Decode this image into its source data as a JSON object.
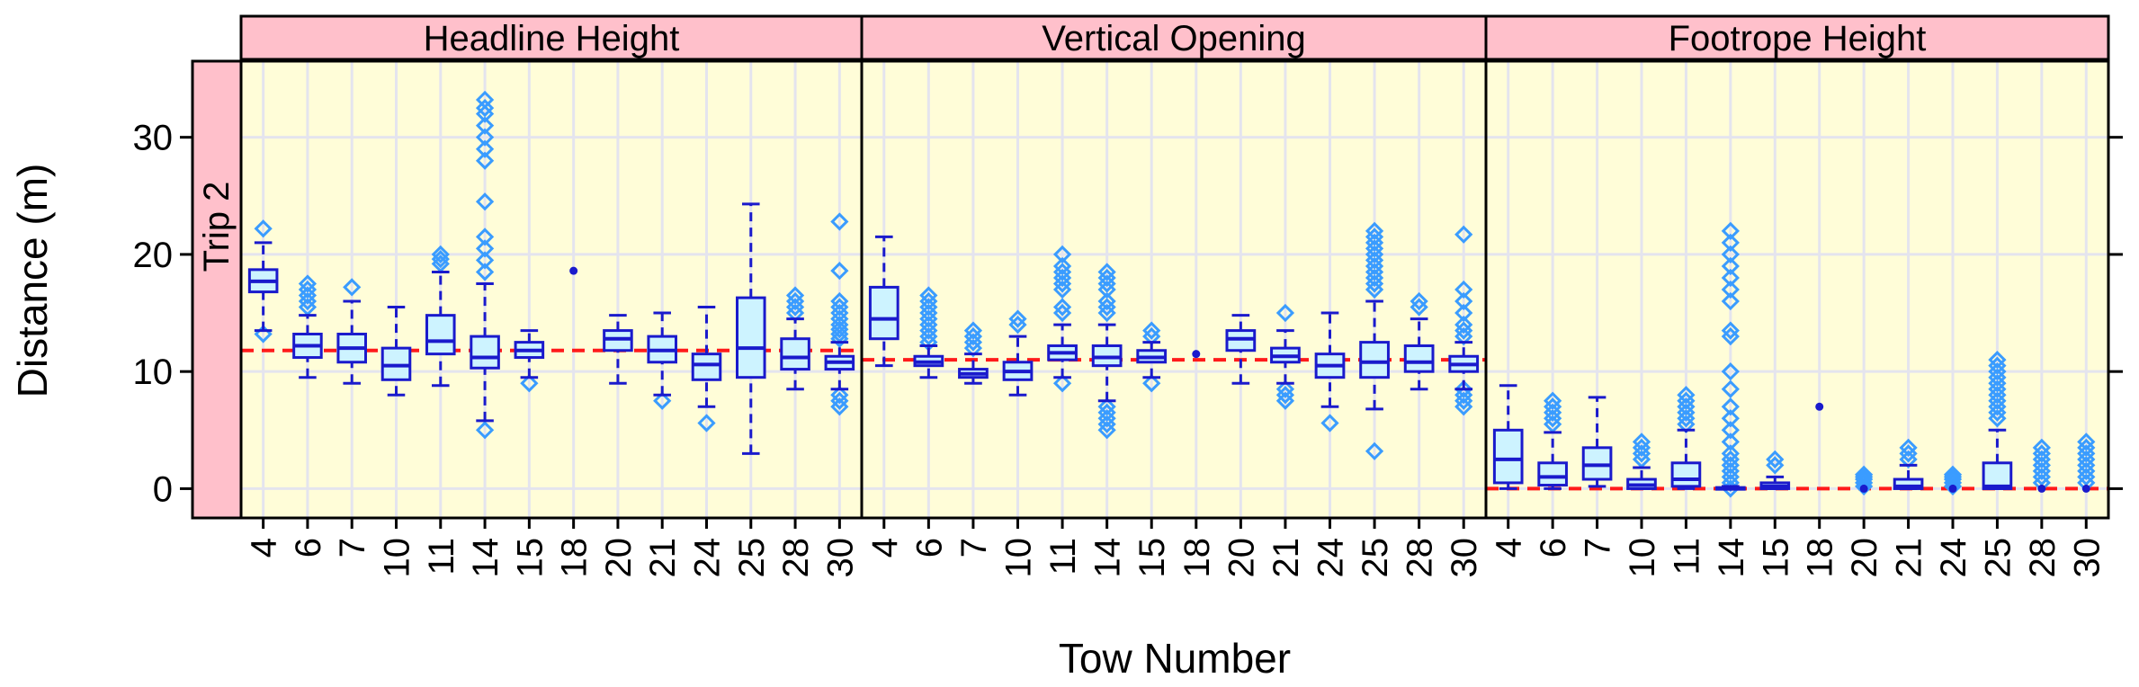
{
  "chart_data": {
    "type": "box",
    "ylabel": "Distance (m)",
    "xlabel": "Tow Number",
    "row_strip": "Trip 2",
    "ylim": [
      -2.5,
      36.5
    ],
    "yticks": [
      0,
      10,
      20,
      30
    ],
    "grid": true,
    "categories": [
      "4",
      "6",
      "7",
      "10",
      "11",
      "14",
      "15",
      "18",
      "20",
      "21",
      "24",
      "25",
      "28",
      "30"
    ],
    "colors": {
      "panel_bg": "#fffdd8",
      "strip_bg": "#ffc0cb",
      "box_stroke": "#1a1acc",
      "box_fill": "#cdf3ff",
      "outlier": "#3a9cff",
      "ref_line": "#ff1a1a",
      "grid": "#e4e4ee"
    },
    "panels": [
      {
        "name": "Headline Height",
        "reference_line": 11.8,
        "boxes": [
          {
            "tow": "4",
            "low": 13.5,
            "q1": 16.8,
            "median": 17.7,
            "q3": 18.7,
            "high": 21,
            "outliers": [
              22.2,
              13.2
            ]
          },
          {
            "tow": "6",
            "low": 9.5,
            "q1": 11.2,
            "median": 12.2,
            "q3": 13.2,
            "high": 14.8,
            "outliers": [
              15.5,
              16,
              16.5,
              17,
              17.5
            ]
          },
          {
            "tow": "7",
            "low": 9,
            "q1": 10.8,
            "median": 12,
            "q3": 13.2,
            "high": 16,
            "outliers": [
              17.2
            ]
          },
          {
            "tow": "10",
            "low": 8,
            "q1": 9.3,
            "median": 10.5,
            "q3": 12,
            "high": 15.5,
            "outliers": []
          },
          {
            "tow": "11",
            "low": 8.8,
            "q1": 11.5,
            "median": 12.6,
            "q3": 14.8,
            "high": 18.5,
            "outliers": [
              19.2,
              19.6,
              20
            ]
          },
          {
            "tow": "14",
            "low": 5.8,
            "q1": 10.3,
            "median": 11.2,
            "q3": 13,
            "high": 17.5,
            "outliers": [
              5,
              18.5,
              19.5,
              20.5,
              21.5,
              24.5,
              28,
              29,
              30,
              31,
              32,
              32.5,
              33.2
            ]
          },
          {
            "tow": "15",
            "low": 9.5,
            "q1": 11.2,
            "median": 11.8,
            "q3": 12.5,
            "high": 13.5,
            "outliers": [
              9
            ]
          },
          {
            "tow": "18",
            "low": 18.6,
            "q1": 18.6,
            "median": 18.6,
            "q3": 18.6,
            "high": 18.6,
            "outliers": []
          },
          {
            "tow": "20",
            "low": 9,
            "q1": 11.8,
            "median": 12.8,
            "q3": 13.5,
            "high": 14.8,
            "outliers": []
          },
          {
            "tow": "21",
            "low": 8,
            "q1": 10.8,
            "median": 11.8,
            "q3": 13,
            "high": 15,
            "outliers": [
              7.5
            ]
          },
          {
            "tow": "24",
            "low": 7,
            "q1": 9.3,
            "median": 10.6,
            "q3": 11.5,
            "high": 15.5,
            "outliers": [
              5.6
            ]
          },
          {
            "tow": "25",
            "low": 3,
            "q1": 9.5,
            "median": 12,
            "q3": 16.3,
            "high": 24.3,
            "outliers": []
          },
          {
            "tow": "28",
            "low": 8.5,
            "q1": 10.2,
            "median": 11.2,
            "q3": 12.8,
            "high": 14.5,
            "outliers": [
              15,
              15.5,
              16,
              16.5
            ]
          },
          {
            "tow": "30",
            "low": 8.5,
            "q1": 10.2,
            "median": 10.8,
            "q3": 11.3,
            "high": 12.5,
            "outliers": [
              7,
              7.5,
              8,
              12.8,
              13.2,
              13.6,
              14,
              14.5,
              15,
              15.5,
              16,
              18.6,
              22.8
            ]
          }
        ]
      },
      {
        "name": "Vertical Opening",
        "reference_line": 11,
        "boxes": [
          {
            "tow": "4",
            "low": 10.5,
            "q1": 12.8,
            "median": 14.5,
            "q3": 17.2,
            "high": 21.5,
            "outliers": []
          },
          {
            "tow": "6",
            "low": 9.5,
            "q1": 10.5,
            "median": 10.8,
            "q3": 11.3,
            "high": 12.2,
            "outliers": [
              12.5,
              13,
              13.5,
              14,
              14.5,
              15,
              15.5,
              16,
              16.5
            ]
          },
          {
            "tow": "7",
            "low": 9,
            "q1": 9.5,
            "median": 9.8,
            "q3": 10.2,
            "high": 11.5,
            "outliers": [
              12,
              12.5,
              13,
              13.5
            ]
          },
          {
            "tow": "10",
            "low": 8,
            "q1": 9.3,
            "median": 10,
            "q3": 10.8,
            "high": 13,
            "outliers": [
              14,
              14.5
            ]
          },
          {
            "tow": "11",
            "low": 9.5,
            "q1": 11,
            "median": 11.6,
            "q3": 12.2,
            "high": 14,
            "outliers": [
              9,
              15,
              15.5,
              17,
              17.5,
              18,
              18.5,
              19,
              20
            ]
          },
          {
            "tow": "14",
            "low": 7.5,
            "q1": 10.5,
            "median": 11.2,
            "q3": 12.2,
            "high": 14,
            "outliers": [
              5,
              5.5,
              6,
              6.5,
              7,
              15,
              15.5,
              16,
              17,
              17.5,
              18,
              18.5
            ]
          },
          {
            "tow": "15",
            "low": 9.5,
            "q1": 10.8,
            "median": 11.2,
            "q3": 11.8,
            "high": 12.5,
            "outliers": [
              9,
              13,
              13.5
            ]
          },
          {
            "tow": "18",
            "low": 11.5,
            "q1": 11.5,
            "median": 11.5,
            "q3": 11.5,
            "high": 11.5,
            "outliers": []
          },
          {
            "tow": "20",
            "low": 9,
            "q1": 11.8,
            "median": 12.8,
            "q3": 13.5,
            "high": 14.8,
            "outliers": []
          },
          {
            "tow": "21",
            "low": 9,
            "q1": 10.8,
            "median": 11.3,
            "q3": 12,
            "high": 13.5,
            "outliers": [
              7.5,
              8,
              8.5,
              15
            ]
          },
          {
            "tow": "24",
            "low": 7,
            "q1": 9.5,
            "median": 10.5,
            "q3": 11.5,
            "high": 15,
            "outliers": [
              5.6
            ]
          },
          {
            "tow": "25",
            "low": 6.8,
            "q1": 9.5,
            "median": 10.8,
            "q3": 12.5,
            "high": 16,
            "outliers": [
              3.2,
              17,
              17.5,
              18,
              18.5,
              19,
              19.5,
              20,
              20.5,
              21,
              21.5,
              22
            ]
          },
          {
            "tow": "28",
            "low": 8.5,
            "q1": 10,
            "median": 10.8,
            "q3": 12.2,
            "high": 14.5,
            "outliers": [
              15.5,
              16
            ]
          },
          {
            "tow": "30",
            "low": 8.5,
            "q1": 10,
            "median": 10.6,
            "q3": 11.3,
            "high": 12.5,
            "outliers": [
              7,
              7.5,
              8,
              8.5,
              13,
              13.5,
              14,
              15,
              16,
              17,
              21.7
            ]
          }
        ]
      },
      {
        "name": "Footrope Height",
        "reference_line": 0,
        "boxes": [
          {
            "tow": "4",
            "low": 0,
            "q1": 0.5,
            "median": 2.5,
            "q3": 5,
            "high": 8.8,
            "outliers": []
          },
          {
            "tow": "6",
            "low": 0,
            "q1": 0.3,
            "median": 1,
            "q3": 2.2,
            "high": 4.8,
            "outliers": [
              5.5,
              6,
              6.5,
              7,
              7.5
            ]
          },
          {
            "tow": "7",
            "low": 0.2,
            "q1": 0.8,
            "median": 2,
            "q3": 3.5,
            "high": 7.8,
            "outliers": []
          },
          {
            "tow": "10",
            "low": 0,
            "q1": 0,
            "median": 0.3,
            "q3": 0.8,
            "high": 1.8,
            "outliers": [
              2.5,
              3,
              3.5,
              4
            ]
          },
          {
            "tow": "11",
            "low": 0,
            "q1": 0.2,
            "median": 0.8,
            "q3": 2.2,
            "high": 5,
            "outliers": [
              5.5,
              6,
              6.5,
              7,
              7.5,
              8
            ]
          },
          {
            "tow": "14",
            "low": 0,
            "q1": 0,
            "median": 0,
            "q3": 0.1,
            "high": 0.2,
            "outliers": [
              0,
              0.5,
              1,
              1.5,
              2,
              2.5,
              3,
              4,
              5,
              6,
              7,
              8.5,
              10,
              13,
              13.5,
              16,
              17,
              18,
              19,
              20,
              21,
              22
            ]
          },
          {
            "tow": "15",
            "low": 0,
            "q1": 0,
            "median": 0.2,
            "q3": 0.5,
            "high": 1,
            "outliers": [
              2,
              2.5
            ]
          },
          {
            "tow": "18",
            "low": 7,
            "q1": 7,
            "median": 7,
            "q3": 7,
            "high": 7,
            "outliers": []
          },
          {
            "tow": "20",
            "low": 0,
            "q1": 0,
            "median": 0,
            "q3": 0,
            "high": 0,
            "outliers": [
              0.2,
              0.5,
              0.8,
              1,
              1.2
            ]
          },
          {
            "tow": "21",
            "low": 0,
            "q1": 0,
            "median": 0.2,
            "q3": 0.8,
            "high": 2,
            "outliers": [
              2.5,
              3,
              3.5
            ]
          },
          {
            "tow": "24",
            "low": 0,
            "q1": 0,
            "median": 0,
            "q3": 0,
            "high": 0,
            "outliers": [
              0.2,
              0.5,
              0.8,
              1,
              1.2
            ]
          },
          {
            "tow": "25",
            "low": 0,
            "q1": 0,
            "median": 0.2,
            "q3": 2.2,
            "high": 5,
            "outliers": [
              6,
              6.5,
              7,
              7.5,
              8,
              8.5,
              9,
              9.5,
              10,
              10.5,
              11
            ]
          },
          {
            "tow": "28",
            "low": 0,
            "q1": 0,
            "median": 0,
            "q3": 0,
            "high": 0,
            "outliers": [
              0.5,
              1,
              1.5,
              2,
              2.5,
              3,
              3.5
            ]
          },
          {
            "tow": "30",
            "low": 0,
            "q1": 0,
            "median": 0,
            "q3": 0,
            "high": 0,
            "outliers": [
              0.5,
              1,
              1.5,
              2,
              2.5,
              3,
              3.5,
              4
            ]
          }
        ]
      }
    ]
  }
}
